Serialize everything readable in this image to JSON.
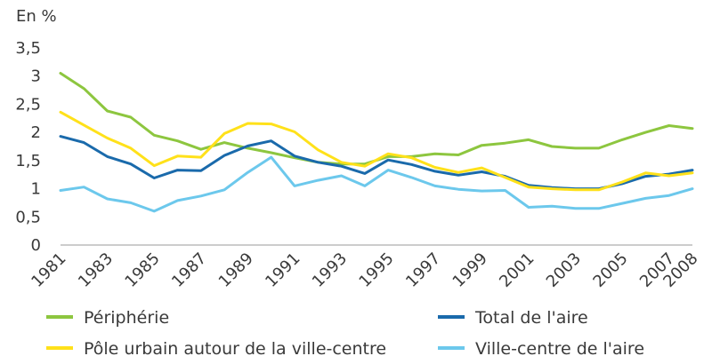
{
  "chart_data": {
    "type": "line",
    "title": "",
    "xlabel": "",
    "ylabel": "En %",
    "ylim": [
      0,
      3.5
    ],
    "yticks": [
      "0",
      "0,5",
      "1",
      "1,5",
      "2",
      "2,5",
      "3",
      "3,5"
    ],
    "x": [
      1981,
      1982,
      1983,
      1984,
      1985,
      1986,
      1987,
      1988,
      1989,
      1990,
      1991,
      1992,
      1993,
      1994,
      1995,
      1996,
      1997,
      1998,
      1999,
      2000,
      2001,
      2002,
      2003,
      2004,
      2005,
      2006,
      2007,
      2008
    ],
    "xtick_labels": [
      "1981",
      "1983",
      "1985",
      "1987",
      "1989",
      "1991",
      "1993",
      "1995",
      "1997",
      "1999",
      "2001",
      "2003",
      "2005",
      "2007",
      "2008"
    ],
    "grid": false,
    "legend_position": "bottom",
    "series": [
      {
        "name": "Périphérie",
        "color": "#8dc63f",
        "values": [
          3.05,
          2.78,
          2.38,
          2.27,
          1.95,
          1.85,
          1.7,
          1.82,
          1.72,
          1.64,
          1.55,
          1.47,
          1.44,
          1.44,
          1.57,
          1.57,
          1.62,
          1.6,
          1.77,
          1.81,
          1.87,
          1.75,
          1.72,
          1.72,
          1.87,
          2.0,
          2.12,
          2.07
        ]
      },
      {
        "name": "Total de l'aire",
        "color": "#1a6aab",
        "values": [
          1.93,
          1.82,
          1.57,
          1.44,
          1.19,
          1.33,
          1.32,
          1.59,
          1.76,
          1.85,
          1.58,
          1.47,
          1.4,
          1.27,
          1.51,
          1.43,
          1.31,
          1.24,
          1.3,
          1.22,
          1.06,
          1.02,
          1.0,
          1.0,
          1.09,
          1.22,
          1.26,
          1.33
        ]
      },
      {
        "name": "Pôle urbain autour de la ville-centre",
        "color": "#ffe11a",
        "values": [
          2.36,
          2.13,
          1.9,
          1.72,
          1.41,
          1.58,
          1.56,
          1.98,
          2.16,
          2.15,
          2.01,
          1.69,
          1.47,
          1.4,
          1.62,
          1.55,
          1.38,
          1.29,
          1.37,
          1.2,
          1.03,
          1.0,
          0.98,
          0.98,
          1.12,
          1.28,
          1.23,
          1.28
        ]
      },
      {
        "name": "Ville-centre de l'aire",
        "color": "#6cc8ec",
        "values": [
          0.97,
          1.03,
          0.82,
          0.75,
          0.6,
          0.79,
          0.87,
          0.98,
          1.29,
          1.56,
          1.05,
          1.15,
          1.23,
          1.05,
          1.33,
          1.2,
          1.05,
          0.99,
          0.96,
          0.97,
          0.67,
          0.69,
          0.65,
          0.65,
          0.74,
          0.83,
          0.88,
          1.0
        ]
      }
    ]
  }
}
